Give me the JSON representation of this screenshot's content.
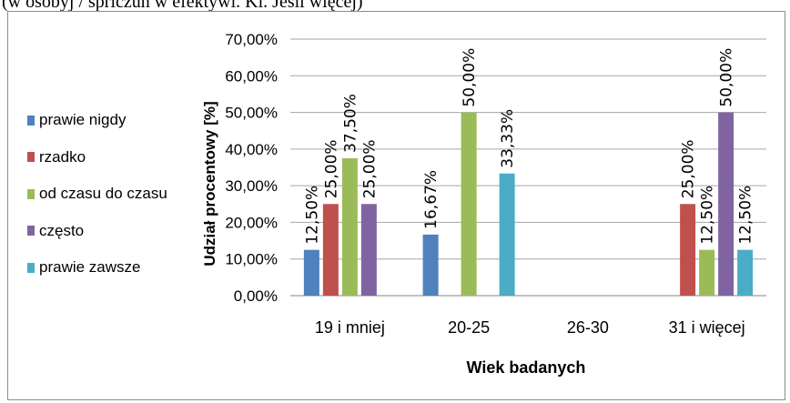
{
  "caption": "(w osobyj / spriczuń w efektywi. Ki. Jeśli więcej)",
  "chart_data": {
    "type": "bar",
    "title": "",
    "xlabel": "Wiek badanych",
    "ylabel": "Udział procentowy [%]",
    "ylim": [
      0,
      70
    ],
    "yticks": [
      "0,00%",
      "10,00%",
      "20,00%",
      "30,00%",
      "40,00%",
      "50,00%",
      "60,00%",
      "70,00%"
    ],
    "ytick_values": [
      0,
      10,
      20,
      30,
      40,
      50,
      60,
      70
    ],
    "categories": [
      "19 i mniej",
      "20-25",
      "26-30",
      "31 i więcej"
    ],
    "grid": true,
    "legend_position": "left",
    "series": [
      {
        "name": "prawie nigdy",
        "color": "#4f81bd",
        "values": [
          12.5,
          16.67,
          0,
          0
        ],
        "labels": [
          "12,50%",
          "16,67%",
          "",
          ""
        ]
      },
      {
        "name": "rzadko",
        "color": "#c0504d",
        "values": [
          25,
          0,
          0,
          25
        ],
        "labels": [
          "25,00%",
          "",
          "",
          "25,00%"
        ]
      },
      {
        "name": "od czasu do czasu",
        "color": "#9bbb59",
        "values": [
          37.5,
          50,
          0,
          12.5
        ],
        "labels": [
          "37,50%",
          "50,00%",
          "",
          "12,50%"
        ]
      },
      {
        "name": "często",
        "color": "#8064a2",
        "values": [
          25,
          0,
          0,
          50
        ],
        "labels": [
          "25,00%",
          "",
          "",
          "50,00%"
        ]
      },
      {
        "name": "prawie zawsze",
        "color": "#4bacc6",
        "values": [
          0,
          33.33,
          0,
          12.5
        ],
        "labels": [
          "",
          "33,33%",
          "",
          "12,50%"
        ]
      }
    ]
  }
}
